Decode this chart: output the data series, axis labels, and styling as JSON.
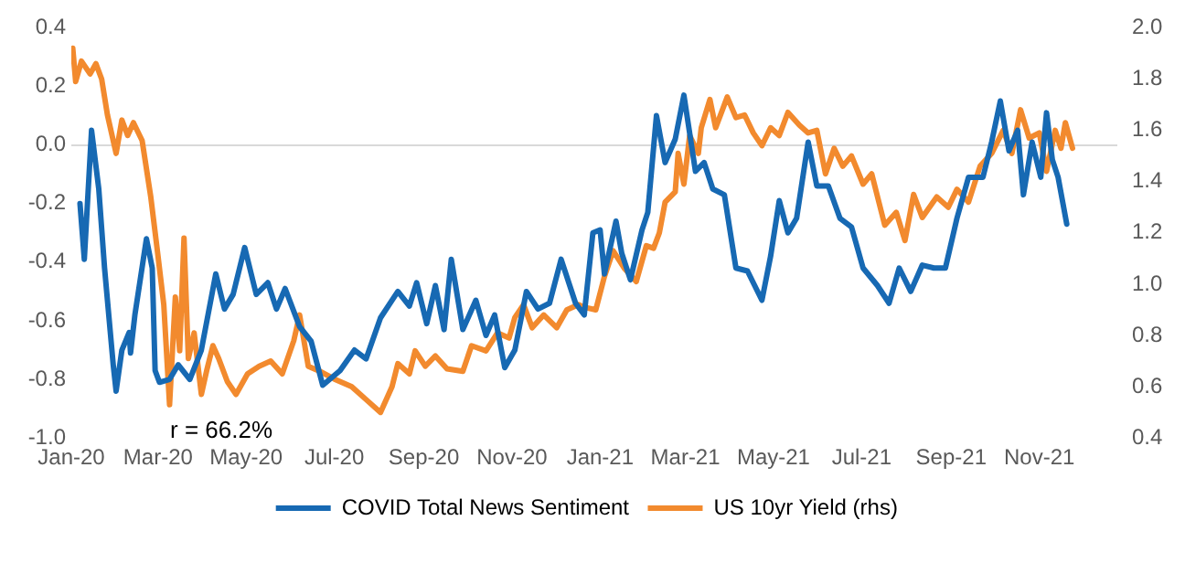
{
  "chart_data": {
    "type": "line",
    "annotations": [
      "r = 66.2%"
    ],
    "xlim": [
      "2020-01-01",
      "2021-12-25"
    ],
    "xticks": [
      {
        "value": "2020-01-01",
        "label": "Jan-20"
      },
      {
        "value": "2020-03-01",
        "label": "Mar-20"
      },
      {
        "value": "2020-05-01",
        "label": "May-20"
      },
      {
        "value": "2020-07-01",
        "label": "Jul-20"
      },
      {
        "value": "2020-09-01",
        "label": "Sep-20"
      },
      {
        "value": "2020-11-01",
        "label": "Nov-20"
      },
      {
        "value": "2021-01-01",
        "label": "Jan-21"
      },
      {
        "value": "2021-03-01",
        "label": "Mar-21"
      },
      {
        "value": "2021-05-01",
        "label": "May-21"
      },
      {
        "value": "2021-07-01",
        "label": "Jul-21"
      },
      {
        "value": "2021-09-01",
        "label": "Sep-21"
      },
      {
        "value": "2021-11-01",
        "label": "Nov-21"
      }
    ],
    "ylim": [
      -1.0,
      0.4
    ],
    "yticks": [
      {
        "value": -1,
        "label": "-1.0"
      },
      -0.8,
      -0.6,
      -0.4,
      -0.2,
      {
        "value": 0,
        "label": "0.0"
      },
      0.2,
      0.4
    ],
    "y2lim": [
      0.4,
      2.0
    ],
    "y2ticks": [
      0.4,
      0.6,
      0.8,
      {
        "value": 1,
        "label": "1.0"
      },
      1.2,
      1.4,
      1.6,
      1.8,
      {
        "value": 2,
        "label": "2.0"
      }
    ],
    "grid": false,
    "ref_lines": [
      {
        "axis": "y",
        "value": 0,
        "color": "#d9d9d9"
      }
    ],
    "legend": "bottom",
    "series": [
      {
        "name": "COVID Total News Sentiment",
        "color": "#1769b3",
        "x": [
          "2020-01-07",
          "2020-01-10",
          "2020-01-15",
          "2020-01-20",
          "2020-01-24",
          "2020-01-30",
          "2020-02-01",
          "2020-02-05",
          "2020-02-10",
          "2020-02-11",
          "2020-02-14",
          "2020-02-22",
          "2020-02-26",
          "2020-02-28",
          "2020-03-02",
          "2020-03-09",
          "2020-03-15",
          "2020-03-23",
          "2020-03-31",
          "2020-04-10",
          "2020-04-16",
          "2020-04-22",
          "2020-04-30",
          "2020-05-08",
          "2020-05-16",
          "2020-05-22",
          "2020-05-28",
          "2020-06-07",
          "2020-06-15",
          "2020-06-23",
          "2020-07-05",
          "2020-07-15",
          "2020-07-23",
          "2020-08-02",
          "2020-08-14",
          "2020-08-22",
          "2020-08-27",
          "2020-09-03",
          "2020-09-09",
          "2020-09-15",
          "2020-09-20",
          "2020-09-28",
          "2020-10-07",
          "2020-10-14",
          "2020-10-20",
          "2020-10-27",
          "2020-11-03",
          "2020-11-11",
          "2020-11-19",
          "2020-11-27",
          "2020-12-05",
          "2020-12-11",
          "2020-12-15",
          "2020-12-21",
          "2020-12-27",
          "2021-01-01",
          "2021-01-04",
          "2021-01-12",
          "2021-01-16",
          "2021-01-22",
          "2021-01-30",
          "2021-02-03",
          "2021-02-09",
          "2021-02-15",
          "2021-02-22",
          "2021-02-28",
          "2021-03-08",
          "2021-03-14",
          "2021-03-20",
          "2021-03-28",
          "2021-04-05",
          "2021-04-13",
          "2021-04-23",
          "2021-04-29",
          "2021-05-05",
          "2021-05-11",
          "2021-05-17",
          "2021-05-25",
          "2021-05-31",
          "2021-06-08",
          "2021-06-16",
          "2021-06-24",
          "2021-07-02",
          "2021-07-12",
          "2021-07-20",
          "2021-07-27",
          "2021-08-04",
          "2021-08-12",
          "2021-08-20",
          "2021-08-28",
          "2021-09-05",
          "2021-09-13",
          "2021-09-23",
          "2021-09-29",
          "2021-10-05",
          "2021-10-11",
          "2021-10-17",
          "2021-10-21",
          "2021-10-27",
          "2021-11-02",
          "2021-11-06",
          "2021-11-10",
          "2021-11-14",
          "2021-11-20"
        ],
        "values": [
          -0.2,
          -0.39,
          0.05,
          -0.15,
          -0.42,
          -0.75,
          -0.84,
          -0.7,
          -0.64,
          -0.71,
          -0.58,
          -0.32,
          -0.42,
          -0.77,
          -0.81,
          -0.8,
          -0.75,
          -0.8,
          -0.7,
          -0.44,
          -0.56,
          -0.51,
          -0.35,
          -0.51,
          -0.47,
          -0.56,
          -0.49,
          -0.62,
          -0.67,
          -0.82,
          -0.77,
          -0.7,
          -0.73,
          -0.59,
          -0.5,
          -0.55,
          -0.47,
          -0.61,
          -0.48,
          -0.63,
          -0.39,
          -0.63,
          -0.53,
          -0.65,
          -0.58,
          -0.76,
          -0.7,
          -0.5,
          -0.56,
          -0.54,
          -0.39,
          -0.48,
          -0.54,
          -0.58,
          -0.3,
          -0.29,
          -0.44,
          -0.26,
          -0.37,
          -0.46,
          -0.29,
          -0.23,
          0.1,
          -0.06,
          0.02,
          0.17,
          -0.09,
          -0.06,
          -0.15,
          -0.17,
          -0.42,
          -0.43,
          -0.53,
          -0.38,
          -0.19,
          -0.3,
          -0.25,
          0.01,
          -0.14,
          -0.14,
          -0.25,
          -0.28,
          -0.42,
          -0.48,
          -0.54,
          -0.42,
          -0.5,
          -0.41,
          -0.42,
          -0.42,
          -0.25,
          -0.11,
          -0.11,
          0.01,
          0.15,
          -0.02,
          0.05,
          -0.17,
          0.01,
          -0.11,
          0.11,
          -0.05,
          -0.11,
          -0.27
        ]
      },
      {
        "name": "US 10yr Yield (rhs)",
        "color": "#f28a2e",
        "axis": "y2",
        "x": [
          "2020-01-02",
          "2020-01-04",
          "2020-01-08",
          "2020-01-14",
          "2020-01-18",
          "2020-01-22",
          "2020-01-26",
          "2020-02-01",
          "2020-02-05",
          "2020-02-09",
          "2020-02-13",
          "2020-02-19",
          "2020-02-25",
          "2020-03-01",
          "2020-03-05",
          "2020-03-09",
          "2020-03-13",
          "2020-03-16",
          "2020-03-19",
          "2020-03-22",
          "2020-03-26",
          "2020-03-31",
          "2020-04-04",
          "2020-04-08",
          "2020-04-12",
          "2020-04-18",
          "2020-04-24",
          "2020-05-02",
          "2020-05-10",
          "2020-05-18",
          "2020-05-26",
          "2020-06-03",
          "2020-06-07",
          "2020-06-13",
          "2020-06-21",
          "2020-07-01",
          "2020-07-13",
          "2020-07-23",
          "2020-08-02",
          "2020-08-10",
          "2020-08-14",
          "2020-08-22",
          "2020-08-26",
          "2020-09-02",
          "2020-09-09",
          "2020-09-17",
          "2020-09-28",
          "2020-10-04",
          "2020-10-14",
          "2020-10-22",
          "2020-10-30",
          "2020-11-03",
          "2020-11-09",
          "2020-11-15",
          "2020-11-23",
          "2020-12-02",
          "2020-12-09",
          "2020-12-17",
          "2020-12-21",
          "2020-12-29",
          "2021-01-04",
          "2021-01-10",
          "2021-01-18",
          "2021-01-26",
          "2021-02-02",
          "2021-02-07",
          "2021-02-11",
          "2021-02-15",
          "2021-02-22",
          "2021-02-24",
          "2021-02-28",
          "2021-03-04",
          "2021-03-10",
          "2021-03-12",
          "2021-03-18",
          "2021-03-22",
          "2021-03-30",
          "2021-04-05",
          "2021-04-11",
          "2021-04-17",
          "2021-04-23",
          "2021-04-29",
          "2021-05-05",
          "2021-05-11",
          "2021-05-19",
          "2021-05-25",
          "2021-05-31",
          "2021-06-06",
          "2021-06-12",
          "2021-06-18",
          "2021-06-24",
          "2021-07-02",
          "2021-07-08",
          "2021-07-17",
          "2021-07-25",
          "2021-07-31",
          "2021-08-06",
          "2021-08-12",
          "2021-08-22",
          "2021-08-30",
          "2021-09-05",
          "2021-09-13",
          "2021-09-21",
          "2021-09-29",
          "2021-10-07",
          "2021-10-13",
          "2021-10-19",
          "2021-10-25",
          "2021-11-01",
          "2021-11-06",
          "2021-11-12",
          "2021-11-16",
          "2021-11-19",
          "2021-11-24"
        ],
        "values": [
          1.92,
          1.79,
          1.87,
          1.82,
          1.86,
          1.8,
          1.66,
          1.51,
          1.64,
          1.58,
          1.63,
          1.56,
          1.34,
          1.11,
          0.92,
          0.53,
          0.95,
          0.74,
          1.18,
          0.71,
          0.81,
          0.57,
          0.67,
          0.76,
          0.71,
          0.62,
          0.57,
          0.65,
          0.68,
          0.7,
          0.65,
          0.78,
          0.88,
          0.68,
          0.66,
          0.63,
          0.6,
          0.55,
          0.5,
          0.6,
          0.69,
          0.65,
          0.74,
          0.68,
          0.72,
          0.67,
          0.66,
          0.76,
          0.74,
          0.81,
          0.79,
          0.87,
          0.92,
          0.83,
          0.88,
          0.83,
          0.9,
          0.92,
          0.91,
          0.9,
          1.03,
          1.13,
          1.06,
          1.01,
          1.15,
          1.14,
          1.2,
          1.32,
          1.36,
          1.51,
          1.39,
          1.58,
          1.51,
          1.61,
          1.72,
          1.61,
          1.73,
          1.65,
          1.66,
          1.59,
          1.54,
          1.61,
          1.58,
          1.67,
          1.62,
          1.59,
          1.6,
          1.43,
          1.53,
          1.46,
          1.5,
          1.39,
          1.43,
          1.23,
          1.28,
          1.17,
          1.35,
          1.26,
          1.34,
          1.3,
          1.37,
          1.32,
          1.46,
          1.51,
          1.6,
          1.51,
          1.68,
          1.57,
          1.59,
          1.44,
          1.6,
          1.53,
          1.63,
          1.53
        ]
      }
    ]
  }
}
